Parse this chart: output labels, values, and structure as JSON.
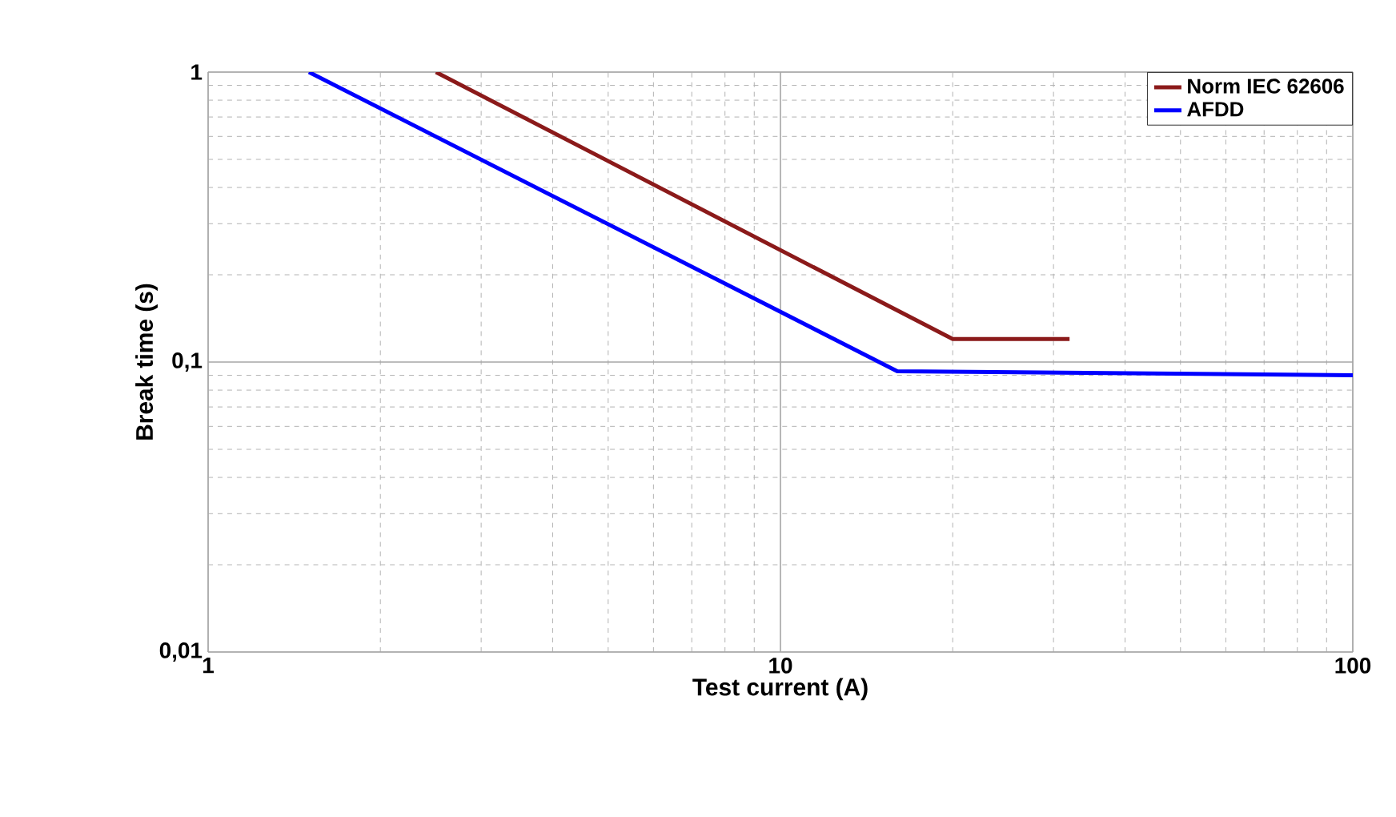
{
  "chart_data": {
    "type": "line",
    "xlabel": "Test current (A)",
    "ylabel": "Break time (s)",
    "log": "xy",
    "grid": true,
    "legend": "top right",
    "marker": "none",
    "line_style": "solid",
    "xlim": [
      1,
      100
    ],
    "ylim": [
      0.01,
      1
    ],
    "xticks": [
      1,
      10,
      100
    ],
    "yticks": [
      {
        "value": 0.01,
        "label": "0,01"
      },
      {
        "value": 0.1,
        "label": "0,1"
      },
      {
        "value": 1,
        "label": "1"
      }
    ],
    "series": [
      {
        "name": "Norm IEC 62606",
        "color": "#8b1a1a",
        "x": [
          2.5,
          20,
          32
        ],
        "values": [
          1,
          0.12,
          0.12
        ]
      },
      {
        "name": "AFDD",
        "color": "#0000ff",
        "x": [
          1.5,
          16,
          100
        ],
        "values": [
          1,
          0.093,
          0.09
        ]
      }
    ]
  }
}
